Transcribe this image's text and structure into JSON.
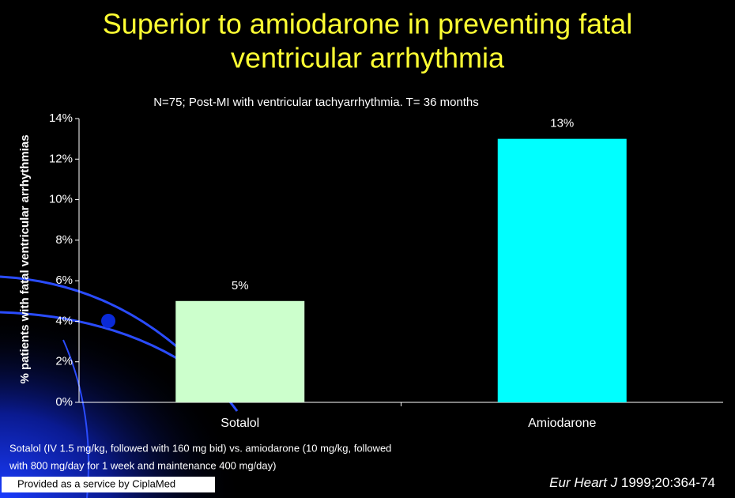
{
  "chart_data": {
    "type": "bar",
    "title_lines": [
      "Superior to amiodarone in preventing fatal",
      "ventricular arrhythmia"
    ],
    "subtitle": "N=75; Post-MI with ventricular tachyarrhythmia. T= 36 months",
    "y_label": "% patients with fatal ventricular arrhythmias",
    "categories": [
      "Sotalol",
      "Amiodarone"
    ],
    "values": [
      5,
      13
    ],
    "value_labels": [
      "5%",
      "13%"
    ],
    "colors": [
      "#ccffcc",
      "#00ffff"
    ],
    "ylim": [
      0,
      14
    ],
    "yticks": [
      {
        "value": 0,
        "label": "0%"
      },
      {
        "value": 2,
        "label": "2%"
      },
      {
        "value": 4,
        "label": "4%"
      },
      {
        "value": 6,
        "label": "6%"
      },
      {
        "value": 8,
        "label": "8%"
      },
      {
        "value": 10,
        "label": "10%"
      },
      {
        "value": 12,
        "label": "12%"
      },
      {
        "value": 14,
        "label": "14%"
      }
    ],
    "grid": false
  },
  "footnote_lines": [
    "Sotalol (IV 1.5 mg/kg, followed with 160 mg bid) vs. amiodarone (10 mg/kg, followed",
    "with 800 mg/day for 1 week and maintenance 400 mg/day)"
  ],
  "provider": "Provided as a service by CiplaMed",
  "citation": {
    "journal": "Eur Heart J",
    "details": " 1999;20:364-74"
  }
}
